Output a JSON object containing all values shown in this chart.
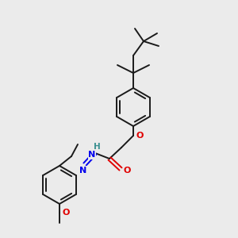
{
  "bg_color": "#ebebeb",
  "bond_color": "#1a1a1a",
  "bond_width": 1.4,
  "atom_colors": {
    "O": "#e00000",
    "N": "#0000ee",
    "H": "#3a9090",
    "C": "#1a1a1a"
  },
  "figsize": [
    3.0,
    3.0
  ],
  "dpi": 100
}
